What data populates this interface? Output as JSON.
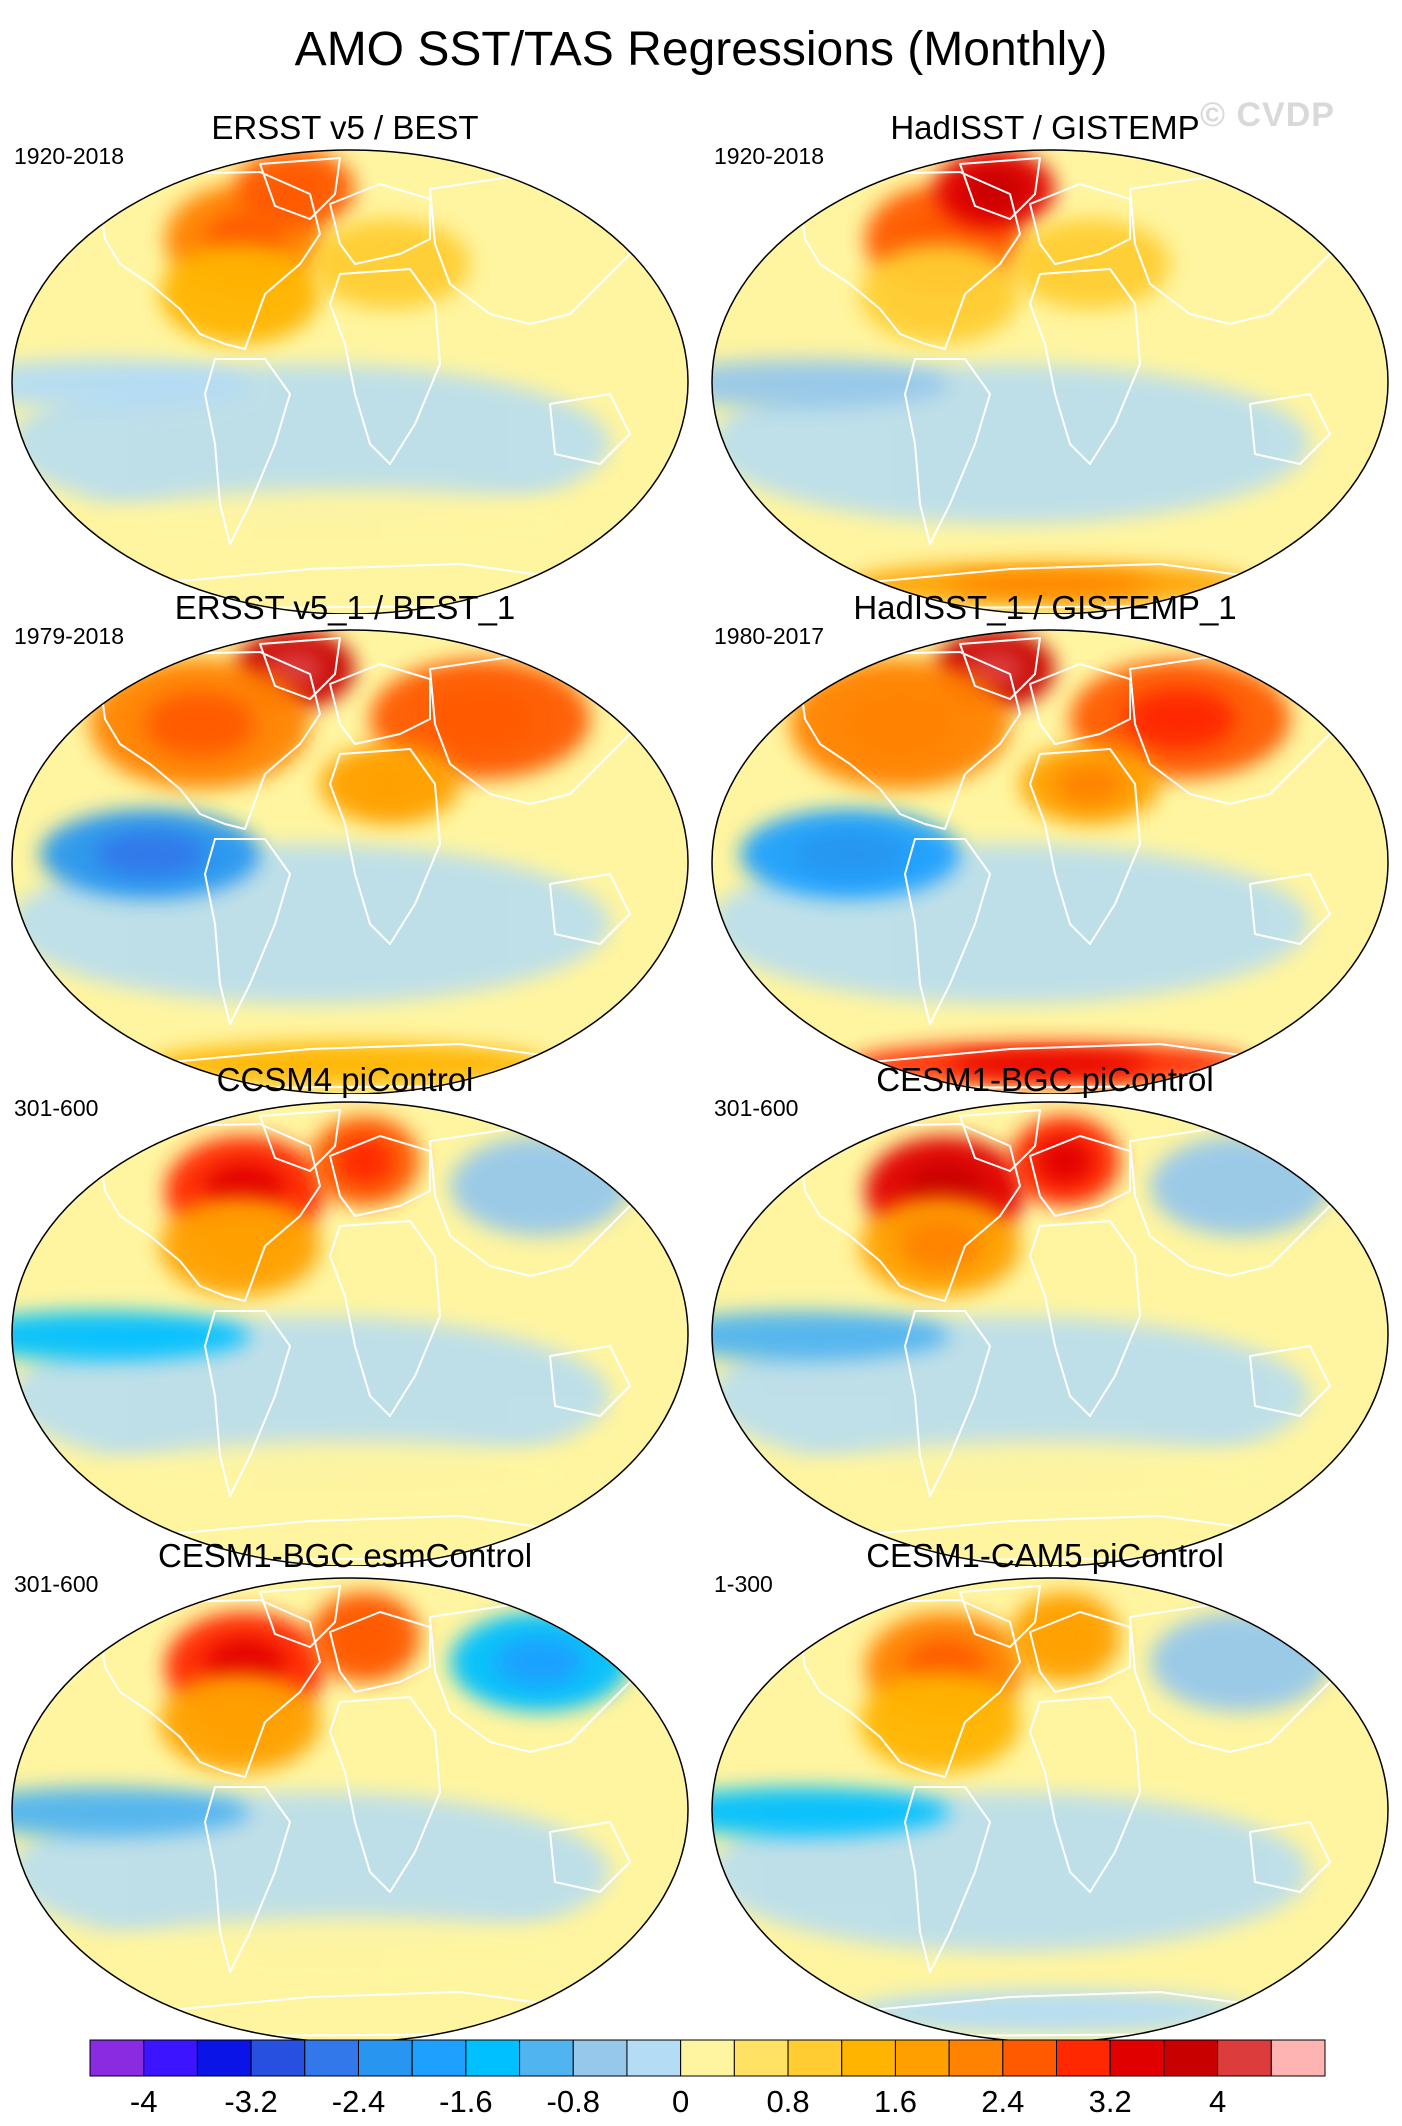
{
  "figure": {
    "title": "AMO SST/TAS Regressions (Monthly)",
    "watermark": "© CVDP"
  },
  "colors": {
    "continent_outline": "#ffffff",
    "map_border": "#000000"
  },
  "chart_data": {
    "type": "heatmap",
    "projection": "Robinson (global)",
    "panels": [
      {
        "title": "ERSST v5 / BEST",
        "period": "1920-2018",
        "features": [
          {
            "region": "North Atlantic / Labrador Sea",
            "value": 2.2
          },
          {
            "region": "Greenland",
            "value": 2.4
          },
          {
            "region": "Eastern North America",
            "value": 1.2
          },
          {
            "region": "Europe / North Africa",
            "value": 0.9
          },
          {
            "region": "Tropical Pacific",
            "value": -0.4
          },
          {
            "region": "Southern Ocean",
            "value": 0.2
          }
        ]
      },
      {
        "title": "HadISST / GISTEMP",
        "period": "1920-2018",
        "features": [
          {
            "region": "North Atlantic / Labrador Sea",
            "value": 2.4
          },
          {
            "region": "Greenland",
            "value": 3.2
          },
          {
            "region": "Eastern North America",
            "value": 1.0
          },
          {
            "region": "Europe / North Africa",
            "value": 1.0
          },
          {
            "region": "Tropical Pacific",
            "value": -0.6
          },
          {
            "region": "Antarctica",
            "value": 1.8
          }
        ]
      },
      {
        "title": "ERSST v5_1 / BEST_1",
        "period": "1979-2018",
        "features": [
          {
            "region": "Greenland / Canadian Arctic",
            "value": 3.6
          },
          {
            "region": "North America",
            "value": 2.2
          },
          {
            "region": "Eurasia",
            "value": 2.4
          },
          {
            "region": "North Africa",
            "value": 1.6
          },
          {
            "region": "Eastern Tropical Pacific",
            "value": -2.2
          },
          {
            "region": "Antarctica",
            "value": 1.4
          }
        ]
      },
      {
        "title": "HadISST_1 / GISTEMP_1",
        "period": "1980-2017",
        "features": [
          {
            "region": "Greenland / Canadian Arctic",
            "value": 3.8
          },
          {
            "region": "North America",
            "value": 2.0
          },
          {
            "region": "Eurasia",
            "value": 2.6
          },
          {
            "region": "North Africa",
            "value": 1.8
          },
          {
            "region": "Eastern Tropical Pacific",
            "value": -2.0
          },
          {
            "region": "Antarctica",
            "value": 2.8
          }
        ]
      },
      {
        "title": "CCSM4 piControl",
        "period": "301-600",
        "features": [
          {
            "region": "North Atlantic / Labrador Sea",
            "value": 3.0
          },
          {
            "region": "Nordic Seas / Barents Sea",
            "value": 2.6
          },
          {
            "region": "Eastern North America",
            "value": 1.6
          },
          {
            "region": "Equatorial Pacific",
            "value": -1.4
          },
          {
            "region": "Siberia",
            "value": -0.6
          },
          {
            "region": "Southern Ocean",
            "value": 0.3
          }
        ]
      },
      {
        "title": "CESM1-BGC piControl",
        "period": "301-600",
        "features": [
          {
            "region": "North Atlantic / Labrador Sea",
            "value": 3.2
          },
          {
            "region": "Nordic Seas / Barents Sea",
            "value": 3.0
          },
          {
            "region": "Eastern North America",
            "value": 1.8
          },
          {
            "region": "Equatorial Pacific",
            "value": -1.2
          },
          {
            "region": "Siberia",
            "value": -0.8
          },
          {
            "region": "Southern Ocean",
            "value": 0.3
          }
        ]
      },
      {
        "title": "CESM1-BGC esmControl",
        "period": "301-600",
        "features": [
          {
            "region": "North Atlantic / Labrador Sea",
            "value": 2.8
          },
          {
            "region": "Nordic Seas / Barents Sea",
            "value": 2.4
          },
          {
            "region": "Eastern North America",
            "value": 1.6
          },
          {
            "region": "Equatorial Pacific",
            "value": -1.0
          },
          {
            "region": "Siberia",
            "value": -1.6
          },
          {
            "region": "Southern Ocean",
            "value": 0.2
          }
        ]
      },
      {
        "title": "CESM1-CAM5 piControl",
        "period": "1-300",
        "features": [
          {
            "region": "North Atlantic / Labrador Sea",
            "value": 2.2
          },
          {
            "region": "Nordic Seas / Barents Sea",
            "value": 1.6
          },
          {
            "region": "Eastern North America",
            "value": 1.4
          },
          {
            "region": "Equatorial Pacific",
            "value": -1.4
          },
          {
            "region": "Siberia",
            "value": -0.6
          },
          {
            "region": "Antarctica",
            "value": -0.4
          }
        ]
      }
    ],
    "colorbar": {
      "levels": [
        -4.4,
        -4,
        -3.6,
        -3.2,
        -2.8,
        -2.4,
        -2,
        -1.6,
        -1.2,
        -0.8,
        -0.4,
        0,
        0.4,
        0.8,
        1.2,
        1.6,
        2,
        2.4,
        2.8,
        3.2,
        3.6,
        4,
        4.4
      ],
      "colors": [
        "#8a2be2",
        "#3c14ff",
        "#0a14e6",
        "#2850e0",
        "#3278eb",
        "#2896f0",
        "#1ea0ff",
        "#00c0ff",
        "#50b4f0",
        "#96c8eb",
        "#b4dcf5",
        "#fff5a0",
        "#ffe164",
        "#ffcd32",
        "#ffb400",
        "#ffa000",
        "#ff8200",
        "#ff5a00",
        "#ff2800",
        "#e10000",
        "#c80000",
        "#dc3c3c",
        "#ffb4b4"
      ],
      "tick_values": [
        -4,
        -3.2,
        -2.4,
        -1.6,
        -0.8,
        0,
        0.8,
        1.6,
        2.4,
        3.2,
        4
      ],
      "tick_labels": [
        "-4",
        "-3.2",
        "-2.4",
        "-1.6",
        "-0.8",
        "0",
        "0.8",
        "1.6",
        "2.4",
        "3.2",
        "4"
      ]
    }
  }
}
